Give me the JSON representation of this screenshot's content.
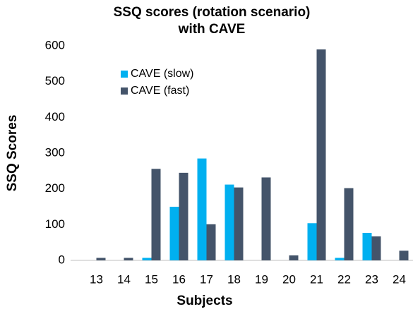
{
  "chart_data": {
    "type": "bar",
    "title": [
      "SSQ scores (rotation scenario)",
      "with CAVE"
    ],
    "x_label": "Subjects",
    "y_label": "SSQ Scores",
    "categories": [
      "13",
      "14",
      "15",
      "16",
      "17",
      "18",
      "19",
      "20",
      "21",
      "22",
      "23",
      "24"
    ],
    "series": [
      {
        "name": "CAVE (slow)",
        "color": "#00b0f0",
        "values": [
          0,
          0,
          7,
          150,
          285,
          212,
          0,
          0,
          104,
          7,
          77,
          0
        ]
      },
      {
        "name": "CAVE (fast)",
        "color": "#44546a",
        "values": [
          7,
          7,
          256,
          245,
          101,
          204,
          232,
          14,
          590,
          202,
          67,
          27
        ]
      }
    ],
    "ylim": [
      0,
      600
    ],
    "yticks": [
      0,
      100,
      200,
      300,
      400,
      500,
      600
    ],
    "grid": false
  }
}
